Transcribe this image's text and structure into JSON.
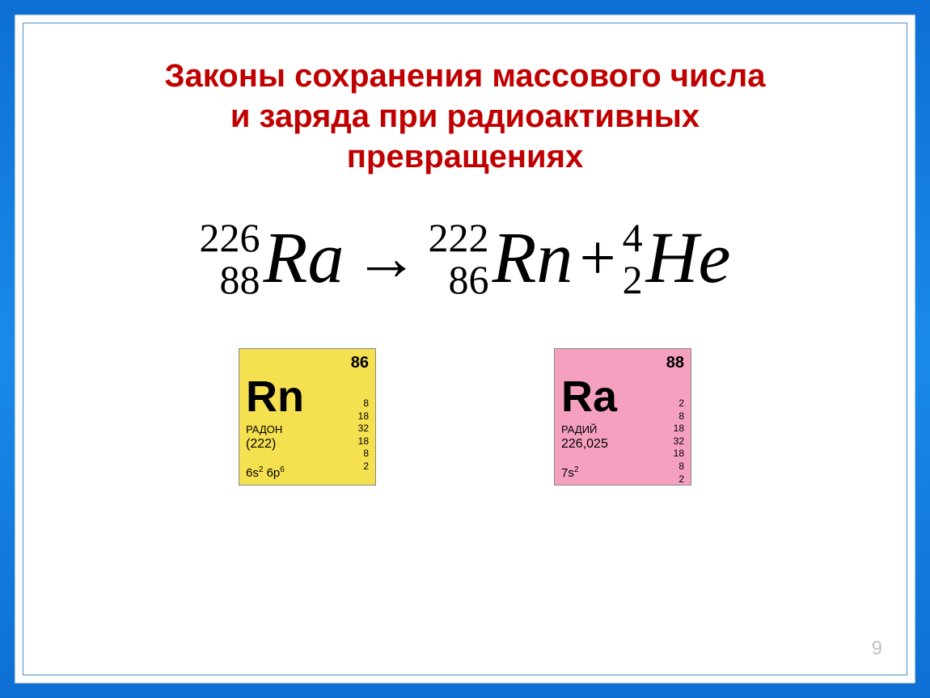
{
  "title_color": "#c00000",
  "title_lines": [
    "Законы сохранения массового числа",
    "и заряда при радиоактивных",
    "превращениях"
  ],
  "equation": {
    "lhs": {
      "mass": "226",
      "charge": "88",
      "symbol": "Ra"
    },
    "arrow": "→",
    "rhs1": {
      "mass": "222",
      "charge": "86",
      "symbol": "Rn"
    },
    "plus": "+",
    "rhs2": {
      "mass": "4",
      "charge": "2",
      "symbol": "He"
    }
  },
  "tiles": [
    {
      "bg": "#f5e050",
      "atomic": "86",
      "symbol": "Rn",
      "name": "РАДОН",
      "mass_label": "(222)",
      "conf_html": "6s<sup>2</sup> 6p<sup>6</sup>",
      "shells": [
        "8",
        "18",
        "32",
        "18",
        "8",
        "2"
      ]
    },
    {
      "bg": "#f5a0c0",
      "atomic": "88",
      "symbol": "Ra",
      "name": "РАДИЙ",
      "mass_label": "226,025",
      "conf_html": "7s<sup>2</sup>",
      "shells": [
        "2",
        "8",
        "18",
        "32",
        "18",
        "8",
        "2"
      ]
    }
  ],
  "page_number": "9"
}
